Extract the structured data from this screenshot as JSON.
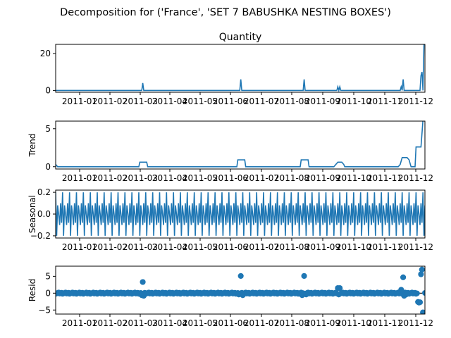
{
  "figure": {
    "suptitle": "Decomposition for ('France', 'SET 7 BABUSHKA NESTING BOXES')"
  },
  "colors": {
    "line": "#1f77b4",
    "axis": "#000000",
    "background": "#ffffff"
  },
  "chart_data": [
    {
      "type": "line",
      "title": "Quantity",
      "ylabel": "",
      "xlabel": "",
      "x_tick_labels": [
        "2011-01",
        "2011-02",
        "2011-03",
        "2011-04",
        "2011-05",
        "2011-06",
        "2011-07",
        "2011-08",
        "2011-09",
        "2011-10",
        "2011-11",
        "2011-12"
      ],
      "y_ticks": [
        "0",
        "20"
      ],
      "ylim": [
        -1,
        25
      ],
      "x_range": [
        "2010-12-01",
        "2011-12-09"
      ],
      "series": [
        {
          "points": [
            [
              "2010-12-01",
              0
            ],
            [
              "2011-02-26",
              0
            ],
            [
              "2011-02-27",
              4
            ],
            [
              "2011-02-28",
              0
            ],
            [
              "2011-06-05",
              0
            ],
            [
              "2011-06-06",
              6
            ],
            [
              "2011-06-07",
              0
            ],
            [
              "2011-08-08",
              0
            ],
            [
              "2011-08-09",
              6
            ],
            [
              "2011-08-10",
              0
            ],
            [
              "2011-09-11",
              0
            ],
            [
              "2011-09-12",
              2
            ],
            [
              "2011-09-13",
              0
            ],
            [
              "2011-09-14",
              2
            ],
            [
              "2011-09-15",
              0
            ],
            [
              "2011-11-14",
              0
            ],
            [
              "2011-11-15",
              2
            ],
            [
              "2011-11-16",
              0
            ],
            [
              "2011-11-17",
              6
            ],
            [
              "2011-11-18",
              0
            ],
            [
              "2011-12-04",
              0
            ],
            [
              "2011-12-05",
              8
            ],
            [
              "2011-12-06",
              10
            ],
            [
              "2011-12-07",
              0
            ],
            [
              "2011-12-08",
              25
            ]
          ]
        }
      ]
    },
    {
      "type": "line",
      "title": "",
      "ylabel": "Trend",
      "xlabel": "",
      "x_tick_labels": [
        "2011-01",
        "2011-02",
        "2011-03",
        "2011-04",
        "2011-05",
        "2011-06",
        "2011-07",
        "2011-08",
        "2011-09",
        "2011-10",
        "2011-11",
        "2011-12"
      ],
      "y_ticks": [
        "0",
        "5"
      ],
      "ylim": [
        -0.3,
        6
      ],
      "x_range": [
        "2010-12-01",
        "2011-12-09"
      ],
      "series": [
        {
          "points": [
            [
              "2010-12-01",
              0.3
            ],
            [
              "2010-12-03",
              0
            ],
            [
              "2011-02-23",
              0
            ],
            [
              "2011-02-24",
              0.6
            ],
            [
              "2011-03-03",
              0.6
            ],
            [
              "2011-03-04",
              0
            ],
            [
              "2011-06-02",
              0
            ],
            [
              "2011-06-03",
              0.9
            ],
            [
              "2011-06-10",
              0.9
            ],
            [
              "2011-06-11",
              0
            ],
            [
              "2011-08-05",
              0
            ],
            [
              "2011-08-06",
              0.9
            ],
            [
              "2011-08-13",
              0.9
            ],
            [
              "2011-08-14",
              0
            ],
            [
              "2011-09-08",
              0
            ],
            [
              "2011-09-10",
              0.3
            ],
            [
              "2011-09-12",
              0.6
            ],
            [
              "2011-09-16",
              0.6
            ],
            [
              "2011-09-18",
              0.3
            ],
            [
              "2011-09-19",
              0
            ],
            [
              "2011-11-12",
              0
            ],
            [
              "2011-11-14",
              0.3
            ],
            [
              "2011-11-16",
              1.2
            ],
            [
              "2011-11-21",
              1.2
            ],
            [
              "2011-11-23",
              0.9
            ],
            [
              "2011-11-25",
              0
            ],
            [
              "2011-11-29",
              0
            ],
            [
              "2011-11-30",
              2.6
            ],
            [
              "2011-12-05",
              2.6
            ],
            [
              "2011-12-07",
              6.1
            ]
          ]
        }
      ]
    },
    {
      "type": "line",
      "title": "",
      "ylabel": "Seasonal",
      "xlabel": "",
      "x_tick_labels": [
        "2011-01",
        "2011-02",
        "2011-03",
        "2011-04",
        "2011-05",
        "2011-06",
        "2011-07",
        "2011-08",
        "2011-09",
        "2011-10",
        "2011-11",
        "2011-12"
      ],
      "y_ticks": [
        "−0.2",
        "0.0",
        "0.2"
      ],
      "ylim": [
        -0.22,
        0.22
      ],
      "x_range": [
        "2010-12-01",
        "2011-12-09"
      ],
      "series": [
        {
          "start": "2010-12-01",
          "period_days": 7,
          "pattern": [
            0.2,
            -0.2,
            0.08,
            0.0,
            -0.1,
            0.1,
            -0.08
          ],
          "end": "2011-12-09"
        }
      ]
    },
    {
      "type": "scatter",
      "title": "",
      "ylabel": "Resid",
      "xlabel": "",
      "x_tick_labels": [
        "2011-01",
        "2011-02",
        "2011-03",
        "2011-04",
        "2011-05",
        "2011-06",
        "2011-07",
        "2011-08",
        "2011-09",
        "2011-10",
        "2011-11",
        "2011-12"
      ],
      "y_ticks": [
        "−5",
        "0",
        "5"
      ],
      "ylim": [
        -6.2,
        8
      ],
      "x_range": [
        "2010-12-01",
        "2011-12-09"
      ],
      "zero_line": true,
      "series": [
        {
          "baseline_noise": 0.2,
          "outliers": [
            [
              "2011-02-26",
              -0.6
            ],
            [
              "2011-02-27",
              3.3
            ],
            [
              "2011-02-28",
              -0.8
            ],
            [
              "2011-06-04",
              -0.4
            ],
            [
              "2011-06-06",
              5.1
            ],
            [
              "2011-06-08",
              -0.6
            ],
            [
              "2011-08-07",
              -0.6
            ],
            [
              "2011-08-09",
              5.1
            ],
            [
              "2011-08-11",
              -0.4
            ],
            [
              "2011-09-12",
              1.5
            ],
            [
              "2011-09-14",
              1.5
            ],
            [
              "2011-09-13",
              -0.4
            ],
            [
              "2011-11-15",
              1.0
            ],
            [
              "2011-11-17",
              4.7
            ],
            [
              "2011-11-18",
              -0.8
            ],
            [
              "2011-11-20",
              -0.4
            ],
            [
              "2011-12-02",
              -2.6
            ],
            [
              "2011-12-03",
              -2.8
            ],
            [
              "2011-12-04",
              -2.7
            ],
            [
              "2011-12-05",
              5.6
            ],
            [
              "2011-12-06",
              7.0
            ],
            [
              "2011-12-07",
              -5.7
            ],
            [
              "2011-12-08",
              -5.8
            ]
          ]
        }
      ]
    }
  ]
}
